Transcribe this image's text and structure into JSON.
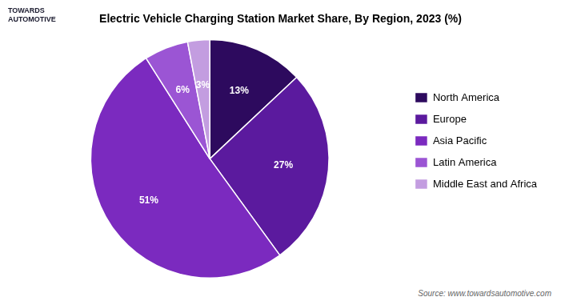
{
  "chart_data": {
    "type": "pie",
    "title": "Electric Vehicle Charging Station Market Share, By Region, 2023 (%)",
    "categories": [
      "North America",
      "Europe",
      "Asia Pacific",
      "Latin America",
      "Middle East and Africa"
    ],
    "values": [
      13,
      27,
      51,
      6,
      3
    ],
    "value_labels": [
      "13%",
      "27%",
      "51%",
      "6%",
      "3%"
    ],
    "colors": [
      "#2d0a5e",
      "#5b1a9e",
      "#7b2abf",
      "#9b55d4",
      "#c39de0"
    ],
    "data_labels": true,
    "legend": "right",
    "annotations": [
      "TOWARDS\nAUTOMOTIVE",
      "Source: www.towardsautomotive.com"
    ]
  }
}
